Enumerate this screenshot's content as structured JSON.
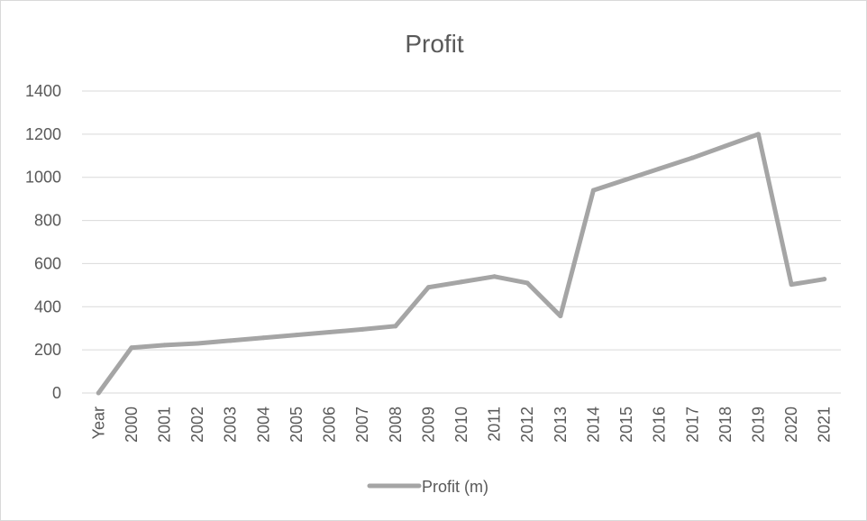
{
  "chart_data": {
    "type": "line",
    "title": "Profit",
    "xlabel": "",
    "ylabel": "",
    "categories": [
      "Year",
      "2000",
      "2001",
      "2002",
      "2003",
      "2004",
      "2005",
      "2006",
      "2007",
      "2008",
      "2009",
      "2010",
      "2011",
      "2012",
      "2013",
      "2014",
      "2015",
      "2016",
      "2017",
      "2018",
      "2019",
      "2020",
      "2021"
    ],
    "series": [
      {
        "name": "Profit (m)",
        "color": "#a5a5a5",
        "values": [
          0,
          210,
          222,
          230,
          243,
          256,
          269,
          282,
          295,
          310,
          490,
          515,
          540,
          510,
          357,
          940,
          990,
          1040,
          1090,
          1145,
          1200,
          503,
          528
        ]
      }
    ],
    "ylim": [
      0,
      1400
    ],
    "yticks": [
      "0",
      "200",
      "400",
      "600",
      "800",
      "1000",
      "1200",
      "1400"
    ],
    "grid": true,
    "legend_position": "bottom"
  }
}
